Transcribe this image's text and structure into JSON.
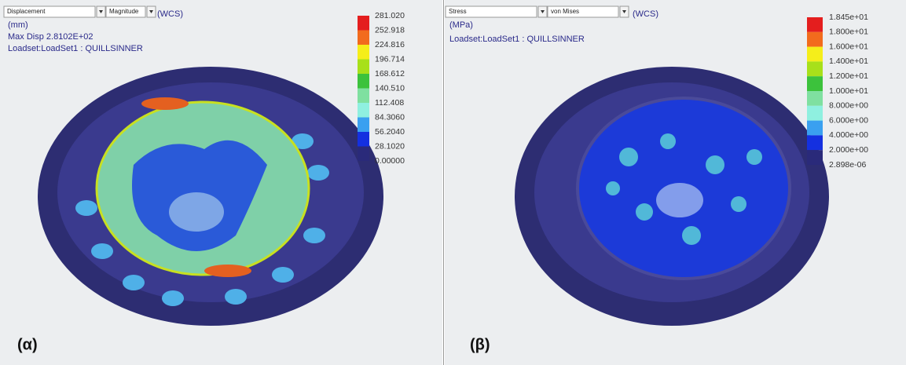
{
  "panels": [
    {
      "dropdowns": [
        "Displacement",
        "Magnitude"
      ],
      "coords": "(WCS)",
      "lines": [
        "(mm)",
        "Max Disp  2.8102E+02",
        "Loadset:LoadSet1 :  QUILLSINNER"
      ],
      "legend": {
        "labels": [
          "281.020",
          "252.918",
          "224.816",
          "196.714",
          "168.612",
          "140.510",
          "112.408",
          "84.3060",
          "56.2040",
          "28.1020",
          "0.00000"
        ],
        "colors": [
          "#e41e1e",
          "#f26b1d",
          "#f5ee1a",
          "#a8e01a",
          "#3cc23c",
          "#7fe0a0",
          "#8ff0e0",
          "#3aa0f0",
          "#1430e0",
          "#2a2a7a"
        ]
      },
      "label": "(α)"
    },
    {
      "dropdowns": [
        "Stress",
        "von Mises"
      ],
      "coords": "(WCS)",
      "lines": [
        "(MPa)",
        "Loadset:LoadSet1 :  QUILLSINNER"
      ],
      "legend": {
        "labels": [
          "1.845e+01",
          "1.800e+01",
          "1.600e+01",
          "1.400e+01",
          "1.200e+01",
          "1.000e+01",
          "8.000e+00",
          "6.000e+00",
          "4.000e+00",
          "2.000e+00",
          "2.898e-06"
        ],
        "colors": [
          "#e41e1e",
          "#f26b1d",
          "#f5ee1a",
          "#a8e01a",
          "#3cc23c",
          "#7fe0a0",
          "#8ff0e0",
          "#3aa0f0",
          "#1430e0",
          "#2a2a7a"
        ]
      },
      "label": "(β)"
    }
  ]
}
